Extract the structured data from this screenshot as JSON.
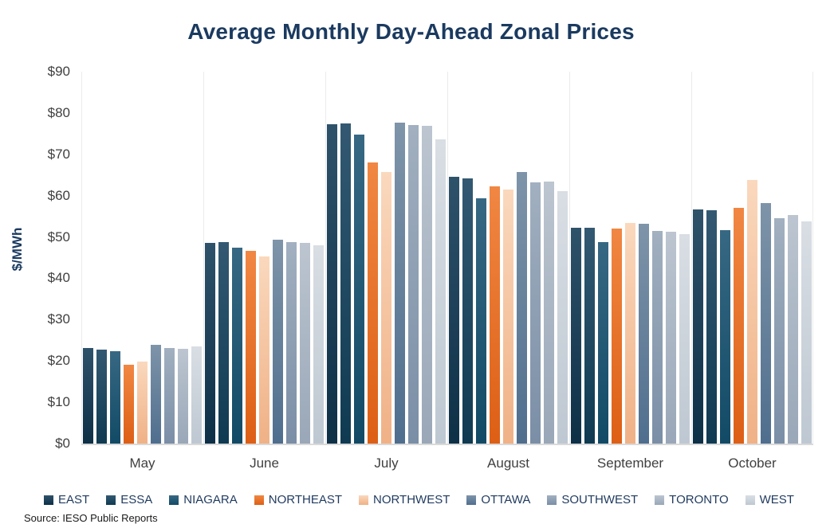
{
  "title": "Average Monthly Day-Ahead Zonal Prices",
  "source_note": "Source: IESO Public Reports",
  "chart_data": {
    "type": "bar",
    "title": "Average Monthly Day-Ahead Zonal Prices",
    "xlabel": "",
    "ylabel": "$/MWh",
    "ylim": [
      0,
      90
    ],
    "ytick_step": 10,
    "ytick_prefix": "$",
    "grid": "vertical category separators only, light gray baseline",
    "legend_position": "bottom",
    "categories": [
      "May",
      "June",
      "July",
      "August",
      "September",
      "October"
    ],
    "series": [
      {
        "name": "EAST",
        "color": "#1c455f",
        "color_top": "#2f526b",
        "color_bottom": "#0d3047",
        "values": [
          23.2,
          48.6,
          77.2,
          64.6,
          52.3,
          56.7
        ]
      },
      {
        "name": "ESSA",
        "color": "#1e4c66",
        "color_top": "#335972",
        "color_bottom": "#0f3a52",
        "values": [
          22.8,
          48.7,
          77.4,
          64.2,
          52.2,
          56.4
        ]
      },
      {
        "name": "NIAGARA",
        "color": "#215a76",
        "color_top": "#376883",
        "color_bottom": "#124a66",
        "values": [
          22.4,
          47.5,
          74.8,
          59.3,
          48.7,
          51.7
        ]
      },
      {
        "name": "NORTHEAST",
        "color": "#e7712b",
        "color_top": "#f08743",
        "color_bottom": "#dd5f15",
        "values": [
          19.1,
          46.7,
          68.0,
          62.3,
          52.0,
          57.1
        ]
      },
      {
        "name": "NORTHWEST",
        "color": "#f5c5a2",
        "color_top": "#fad8bd",
        "color_bottom": "#f0b186",
        "values": [
          19.9,
          45.2,
          65.7,
          61.5,
          53.3,
          63.8
        ]
      },
      {
        "name": "OTTAWA",
        "color": "#66809b",
        "color_top": "#7e94a9",
        "color_bottom": "#4f6e8e",
        "values": [
          23.9,
          49.4,
          77.7,
          65.8,
          53.2,
          58.2
        ]
      },
      {
        "name": "SOUTHWEST",
        "color": "#8e9fb3",
        "color_top": "#a2b0c0",
        "color_bottom": "#7a8ea6",
        "values": [
          23.2,
          48.8,
          77.1,
          63.3,
          51.4,
          54.6
        ]
      },
      {
        "name": "TORONTO",
        "color": "#abb6c4",
        "color_top": "#bcc5d0",
        "color_bottom": "#99a7b8",
        "values": [
          23.0,
          48.5,
          76.9,
          63.5,
          51.2,
          55.3
        ]
      },
      {
        "name": "WEST",
        "color": "#ccd3db",
        "color_top": "#d9dee4",
        "color_bottom": "#bec8d2",
        "values": [
          23.6,
          47.9,
          73.6,
          61.1,
          50.6,
          53.7
        ]
      }
    ]
  },
  "colors": {
    "title_text": "#1b3a60",
    "axis_text": "#404040",
    "legend_text": "#1f3a5f",
    "baseline": "#d9d9d9",
    "separator": "#ebebeb",
    "background": "#ffffff"
  }
}
